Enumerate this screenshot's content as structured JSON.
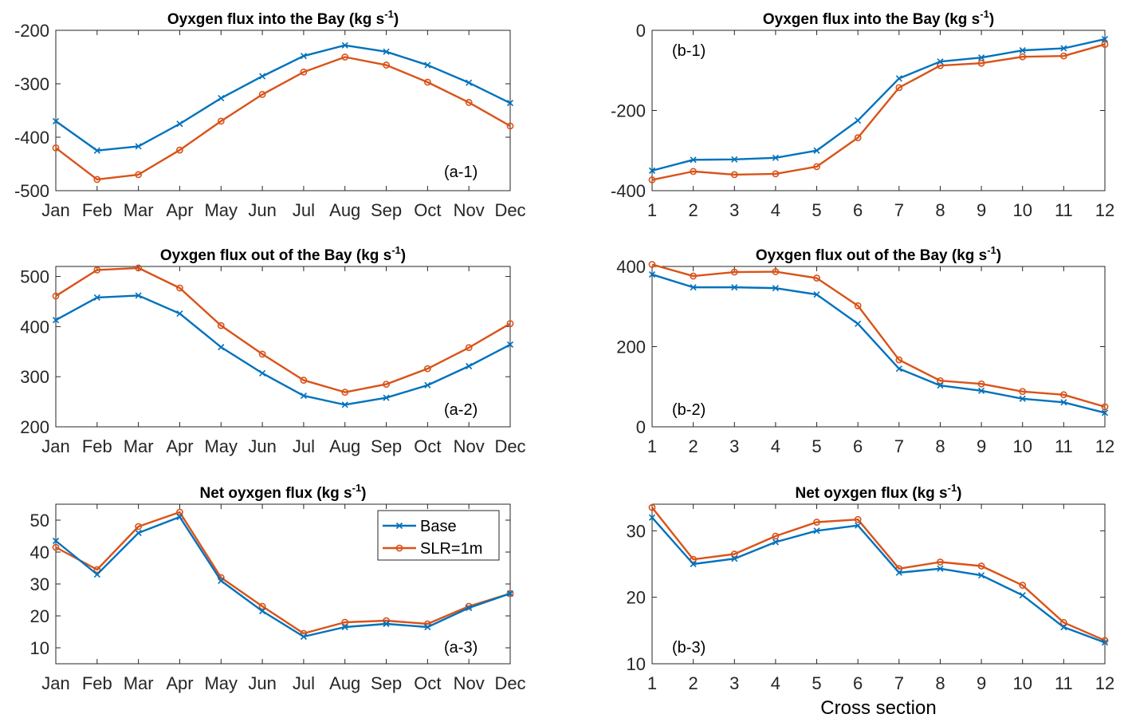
{
  "colors": {
    "base": "#0072BD",
    "slr": "#D95319",
    "axis": "#262626"
  },
  "legend": {
    "base": "Base",
    "slr": "SLR=1m",
    "placement": "top-right of panel a-3"
  },
  "chart_data": [
    {
      "id": "a-1",
      "type": "line",
      "title": "Oyxgen flux into the Bay (kg s",
      "title_sup": "-1",
      "title_end": ")",
      "panel_label": "(a-1)",
      "categories": [
        "Jan",
        "Feb",
        "Mar",
        "Apr",
        "May",
        "Jun",
        "Jul",
        "Aug",
        "Sep",
        "Oct",
        "Nov",
        "Dec"
      ],
      "ylim": [
        -500,
        -200
      ],
      "yticks": [
        -500,
        -400,
        -300,
        -200
      ],
      "series": [
        {
          "name": "Base",
          "values": [
            -370,
            -425,
            -417,
            -375,
            -327,
            -286,
            -248,
            -228,
            -240,
            -265,
            -298,
            -336
          ]
        },
        {
          "name": "SLR=1m",
          "values": [
            -420,
            -479,
            -470,
            -424,
            -370,
            -320,
            -278,
            -250,
            -265,
            -297,
            -335,
            -379
          ]
        }
      ]
    },
    {
      "id": "b-1",
      "type": "line",
      "title": "Oyxgen flux into the Bay (kg s",
      "title_sup": "-1",
      "title_end": ")",
      "panel_label": "(b-1)",
      "categories": [
        "1",
        "2",
        "3",
        "4",
        "5",
        "6",
        "7",
        "8",
        "9",
        "10",
        "11",
        "12"
      ],
      "ylim": [
        -400,
        0
      ],
      "yticks": [
        -400,
        -200,
        0
      ],
      "series": [
        {
          "name": "Base",
          "values": [
            -350,
            -323,
            -322,
            -318,
            -300,
            -225,
            -120,
            -78,
            -68,
            -50,
            -45,
            -22
          ]
        },
        {
          "name": "SLR=1m",
          "values": [
            -373,
            -352,
            -360,
            -358,
            -340,
            -268,
            -143,
            -88,
            -82,
            -66,
            -64,
            -35
          ]
        }
      ]
    },
    {
      "id": "a-2",
      "type": "line",
      "title": "Oyxgen flux out of the Bay (kg s",
      "title_sup": "-1",
      "title_end": ")",
      "panel_label": "(a-2)",
      "categories": [
        "Jan",
        "Feb",
        "Mar",
        "Apr",
        "May",
        "Jun",
        "Jul",
        "Aug",
        "Sep",
        "Oct",
        "Nov",
        "Dec"
      ],
      "ylim": [
        200,
        520
      ],
      "yticks": [
        200,
        300,
        400,
        500
      ],
      "series": [
        {
          "name": "Base",
          "values": [
            413,
            458,
            462,
            426,
            359,
            307,
            262,
            244,
            258,
            283,
            321,
            364
          ]
        },
        {
          "name": "SLR=1m",
          "values": [
            461,
            513,
            517,
            477,
            402,
            345,
            293,
            269,
            285,
            316,
            358,
            406
          ]
        }
      ]
    },
    {
      "id": "b-2",
      "type": "line",
      "title": "Oyxgen flux out of the Bay (kg s",
      "title_sup": "-1",
      "title_end": ")",
      "panel_label": "(b-2)",
      "categories": [
        "1",
        "2",
        "3",
        "4",
        "5",
        "6",
        "7",
        "8",
        "9",
        "10",
        "11",
        "12"
      ],
      "ylim": [
        0,
        400
      ],
      "yticks": [
        0,
        200,
        400
      ],
      "series": [
        {
          "name": "Base",
          "values": [
            380,
            348,
            348,
            346,
            330,
            257,
            145,
            103,
            90,
            70,
            61,
            35
          ]
        },
        {
          "name": "SLR=1m",
          "values": [
            405,
            376,
            386,
            387,
            371,
            302,
            167,
            115,
            107,
            88,
            80,
            50
          ]
        }
      ]
    },
    {
      "id": "a-3",
      "type": "line",
      "title": "Net oyxgen flux (kg s",
      "title_sup": "-1",
      "title_end": ")",
      "panel_label": "(a-3)",
      "categories": [
        "Jan",
        "Feb",
        "Mar",
        "Apr",
        "May",
        "Jun",
        "Jul",
        "Aug",
        "Sep",
        "Oct",
        "Nov",
        "Dec"
      ],
      "ylim": [
        5,
        55
      ],
      "yticks": [
        10,
        20,
        30,
        40,
        50
      ],
      "series": [
        {
          "name": "Base",
          "values": [
            43.5,
            33,
            46,
            51,
            31,
            21.5,
            13.5,
            16.5,
            17.5,
            16.5,
            22.5,
            27
          ]
        },
        {
          "name": "SLR=1m",
          "values": [
            41.5,
            34.5,
            48,
            52.5,
            32,
            23,
            14.5,
            18,
            18.5,
            17.5,
            23,
            27
          ]
        }
      ]
    },
    {
      "id": "b-3",
      "type": "line",
      "title": "Net oyxgen flux (kg s",
      "title_sup": "-1",
      "title_end": ")",
      "panel_label": "(b-3)",
      "categories": [
        "1",
        "2",
        "3",
        "4",
        "5",
        "6",
        "7",
        "8",
        "9",
        "10",
        "11",
        "12"
      ],
      "xlabel": "Cross section",
      "ylim": [
        10,
        34
      ],
      "yticks": [
        10,
        20,
        30
      ],
      "series": [
        {
          "name": "Base",
          "values": [
            32,
            25,
            25.8,
            28.3,
            30,
            30.8,
            23.7,
            24.3,
            23.3,
            20.3,
            15.5,
            13.2
          ]
        },
        {
          "name": "SLR=1m",
          "values": [
            33.5,
            25.7,
            26.5,
            29.2,
            31.3,
            31.7,
            24.3,
            25.3,
            24.7,
            21.8,
            16.2,
            13.5
          ]
        }
      ]
    }
  ]
}
